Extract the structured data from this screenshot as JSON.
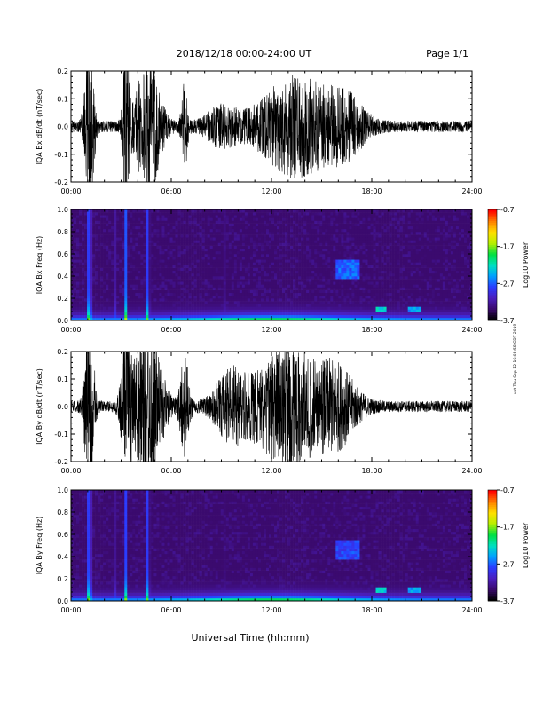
{
  "header": {
    "date_range": "2018/12/18   00:00-24:00 UT",
    "page": "Page 1/1"
  },
  "side_note": "xxt Thu Sep 12 16:08:58 CDT 2019",
  "x_axis": {
    "label": "Universal Time (hh:mm)",
    "ticks": [
      "00:00",
      "06:00",
      "12:00",
      "18:00",
      "24:00"
    ]
  },
  "colors": {
    "background": "#ffffff",
    "trace": "#000000",
    "spectrogram_floor": "#1a0033",
    "colormap": [
      "#000000",
      "#3b0a6e",
      "#4b1fbf",
      "#2a3cff",
      "#00a0ff",
      "#00e0c0",
      "#00e040",
      "#b8f000",
      "#ffe000",
      "#ff8000",
      "#ff0000"
    ]
  },
  "chart_data": [
    {
      "type": "line",
      "title": "",
      "ylabel": "IQA Bx dB/dt (nT/sec)",
      "xlabel": "",
      "xlim": [
        "00:00",
        "24:00"
      ],
      "ylim": [
        -0.2,
        0.2
      ],
      "yticks": [
        "-0.2",
        "-0.1",
        "0.0",
        "0.1",
        "0.2"
      ],
      "background_amplitude": 0.02,
      "bursts": [
        {
          "t": 1.1,
          "amp": 0.3,
          "w": 0.3
        },
        {
          "t": 3.3,
          "amp": 0.3,
          "w": 0.2
        },
        {
          "t": 4.6,
          "amp": 0.25,
          "w": 0.8
        },
        {
          "t": 6.8,
          "amp": 0.15,
          "w": 0.2
        },
        {
          "t": 9.0,
          "amp": 0.06,
          "w": 1.0
        },
        {
          "t": 13.5,
          "amp": 0.17,
          "w": 2.5
        },
        {
          "t": 16.5,
          "amp": 0.08,
          "w": 1.2
        }
      ]
    },
    {
      "type": "heatmap",
      "title": "",
      "ylabel": "IQA Bx Freq (Hz)",
      "xlabel": "",
      "xlim": [
        "00:00",
        "24:00"
      ],
      "ylim": [
        0.0,
        1.0
      ],
      "yticks": [
        "0.0",
        "0.2",
        "0.4",
        "0.6",
        "0.8",
        "1.0"
      ],
      "colorbar": {
        "label": "Log10 Power",
        "range": [
          -3.7,
          -0.7
        ],
        "ticks": [
          "-0.7",
          "-1.7",
          "-2.7",
          "-3.7"
        ]
      },
      "vertical_features": [
        {
          "t": 1.1,
          "power": -0.9,
          "max_freq": 1.0
        },
        {
          "t": 2.6,
          "power": -2.4,
          "max_freq": 1.0
        },
        {
          "t": 3.3,
          "power": -1.2,
          "max_freq": 1.0
        },
        {
          "t": 4.6,
          "power": -1.3,
          "max_freq": 1.0
        },
        {
          "t": 9.2,
          "power": -2.8,
          "max_freq": 1.0
        }
      ],
      "band_features": [
        {
          "t_start": 15.8,
          "t_end": 17.3,
          "freq_low": 0.38,
          "freq_high": 0.56,
          "power": -2.7
        },
        {
          "t_start": 18.3,
          "t_end": 18.9,
          "freq_low": 0.08,
          "freq_high": 0.12,
          "power": -2.3
        },
        {
          "t_start": 20.2,
          "t_end": 21.0,
          "freq_low": 0.08,
          "freq_high": 0.12,
          "power": -2.5
        }
      ]
    },
    {
      "type": "line",
      "title": "",
      "ylabel": "IQA By dB/dt (nT/sec)",
      "xlabel": "",
      "xlim": [
        "00:00",
        "24:00"
      ],
      "ylim": [
        -0.2,
        0.2
      ],
      "yticks": [
        "-0.2",
        "-0.1",
        "0.0",
        "0.1",
        "0.2"
      ],
      "background_amplitude": 0.02,
      "bursts": [
        {
          "t": 1.1,
          "amp": 0.35,
          "w": 0.3
        },
        {
          "t": 3.3,
          "amp": 0.3,
          "w": 0.3
        },
        {
          "t": 4.6,
          "amp": 0.3,
          "w": 0.9
        },
        {
          "t": 6.8,
          "amp": 0.17,
          "w": 0.3
        },
        {
          "t": 9.5,
          "amp": 0.1,
          "w": 1.0
        },
        {
          "t": 13.0,
          "amp": 0.2,
          "w": 2.5
        },
        {
          "t": 16.0,
          "amp": 0.1,
          "w": 1.2
        }
      ]
    },
    {
      "type": "heatmap",
      "title": "",
      "ylabel": "IQA By Freq (Hz)",
      "xlabel": "",
      "xlim": [
        "00:00",
        "24:00"
      ],
      "ylim": [
        0.0,
        1.0
      ],
      "yticks": [
        "0.0",
        "0.2",
        "0.4",
        "0.6",
        "0.8",
        "1.0"
      ],
      "colorbar": {
        "label": "Log10 Power",
        "range": [
          -3.7,
          -0.7
        ],
        "ticks": [
          "-0.7",
          "-1.7",
          "-2.7",
          "-3.7"
        ]
      },
      "vertical_features": [
        {
          "t": 1.1,
          "power": -0.9,
          "max_freq": 1.0
        },
        {
          "t": 2.6,
          "power": -2.5,
          "max_freq": 1.0
        },
        {
          "t": 3.3,
          "power": -1.4,
          "max_freq": 1.0
        },
        {
          "t": 4.6,
          "power": -1.3,
          "max_freq": 1.0
        },
        {
          "t": 9.2,
          "power": -2.9,
          "max_freq": 1.0
        }
      ],
      "band_features": [
        {
          "t_start": 15.8,
          "t_end": 17.3,
          "freq_low": 0.38,
          "freq_high": 0.56,
          "power": -2.8
        },
        {
          "t_start": 18.3,
          "t_end": 18.9,
          "freq_low": 0.08,
          "freq_high": 0.12,
          "power": -2.3
        },
        {
          "t_start": 20.2,
          "t_end": 21.0,
          "freq_low": 0.08,
          "freq_high": 0.12,
          "power": -2.5
        }
      ]
    }
  ]
}
